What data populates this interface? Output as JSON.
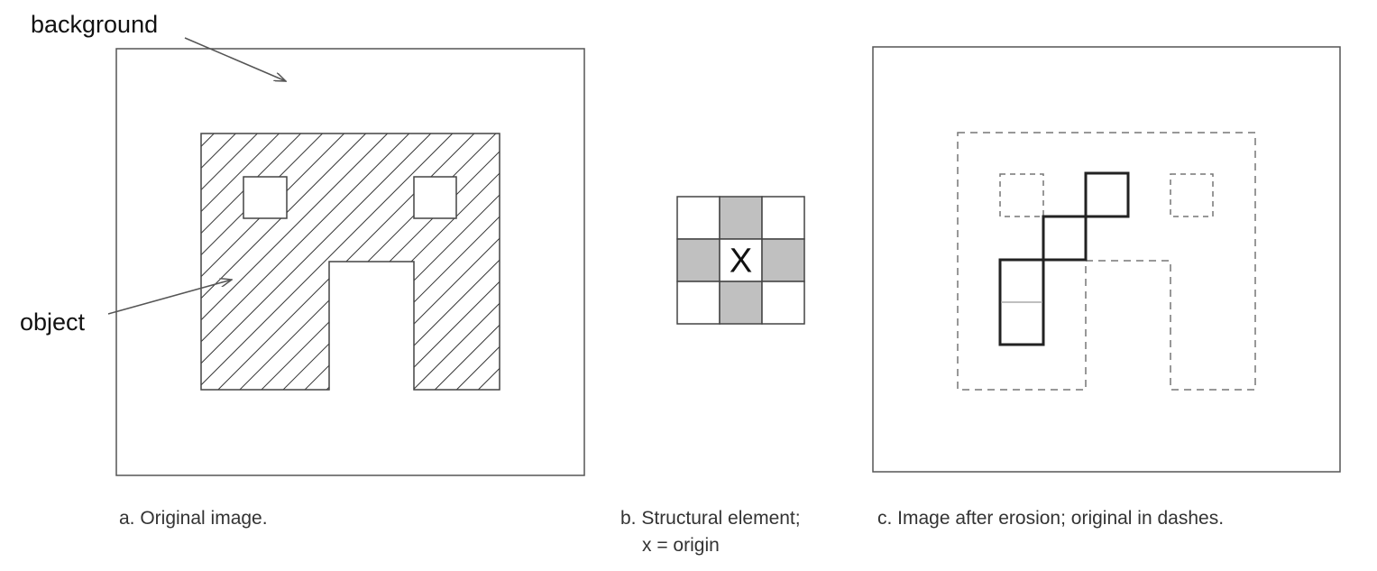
{
  "panel_a": {
    "background_label": "background",
    "object_label": "object",
    "caption": "a. Original image."
  },
  "panel_b": {
    "origin_mark": "X",
    "caption_line1": "b. Structural element;",
    "caption_line2": "x = origin",
    "grid": [
      [
        0,
        1,
        0
      ],
      [
        1,
        1,
        1
      ],
      [
        0,
        1,
        0
      ]
    ],
    "fill_color": "#c0c0c0"
  },
  "panel_c": {
    "caption": "c. Image after erosion; original in dashes."
  }
}
